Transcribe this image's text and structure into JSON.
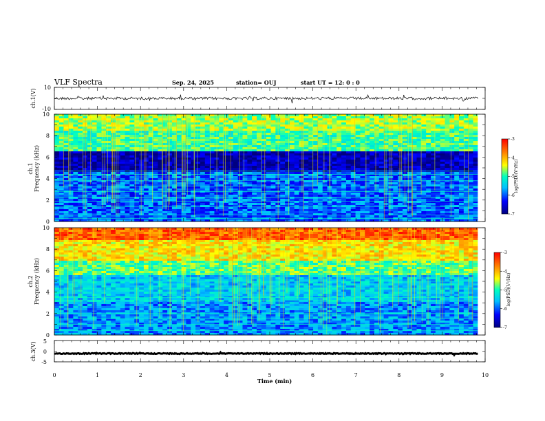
{
  "header": {
    "title": "VLF Spectra",
    "date": "Sep. 24, 2025",
    "station": "station= OUJ",
    "start": "start  UT  =   12: 0  : 0"
  },
  "colors": {
    "colormap": [
      "#00007f",
      "#0000ff",
      "#00c0ff",
      "#00ffc0",
      "#ffff00",
      "#ff8000",
      "#ff0000"
    ]
  },
  "chart_data": [
    {
      "type": "line",
      "id": "ch1_waveform",
      "ylabel": "ch.1(V)",
      "ylim": [
        -10,
        10
      ],
      "yticks": [
        "10",
        "-10"
      ],
      "xlim": [
        0,
        10
      ],
      "series": [
        {
          "x": [
            0,
            9.83
          ],
          "y": [
            0,
            0
          ],
          "note_level": 0
        }
      ]
    },
    {
      "type": "heatmap",
      "id": "ch1_spectrogram",
      "ylabel": [
        "ch.1",
        "Frequency (kHz)"
      ],
      "ylim": [
        0,
        10
      ],
      "yticks": [
        "0",
        "2",
        "4",
        "6",
        "8",
        "10"
      ],
      "xlim": [
        0,
        10
      ],
      "data_xmax": 9.83,
      "colorbar": {
        "label": "log(PSD)(V²/Hz)",
        "range": [
          -7,
          -3
        ],
        "ticks": [
          "-3",
          "-4",
          "-5",
          "-6",
          "-7"
        ]
      },
      "bands": [
        {
          "from": 0,
          "to": 4.7,
          "level": -6.0
        },
        {
          "from": 4.7,
          "to": 6.5,
          "level": -6.7
        },
        {
          "from": 6.5,
          "to": 8.5,
          "level": -4.9
        },
        {
          "from": 8.5,
          "to": 10,
          "level": -4.6
        }
      ],
      "lines_khz": [
        0.3,
        0.6,
        1.4,
        1.9,
        2.2,
        2.8,
        3.3,
        3.8,
        4.4,
        4.7
      ]
    },
    {
      "type": "heatmap",
      "id": "ch2_spectrogram",
      "ylabel": [
        "ch.2",
        "Frequency (kHz)"
      ],
      "ylim": [
        0,
        10
      ],
      "yticks": [
        "0",
        "2",
        "4",
        "6",
        "8",
        "10"
      ],
      "xlim": [
        0,
        10
      ],
      "data_xmax": 9.83,
      "colorbar": {
        "label": "log(PSD)(V²/Hz)",
        "range": [
          -7,
          -3
        ],
        "ticks": [
          "-3",
          "-4",
          "-5",
          "-6",
          "-7"
        ]
      },
      "bands": [
        {
          "from": 0,
          "to": 3.0,
          "level": -5.8
        },
        {
          "from": 3.0,
          "to": 5.5,
          "level": -5.5
        },
        {
          "from": 5.5,
          "to": 7.0,
          "level": -4.8
        },
        {
          "from": 7.0,
          "to": 8.8,
          "level": -4.2
        },
        {
          "from": 8.8,
          "to": 10,
          "level": -3.5
        }
      ],
      "lines_khz": [
        0.4,
        1.0,
        1.5,
        2.0,
        3.2,
        3.5,
        4.3,
        5.0
      ]
    },
    {
      "type": "line",
      "id": "ch3_waveform",
      "ylabel": "ch.3(V)",
      "ylim": [
        -5,
        5
      ],
      "yticks": [
        "5",
        "0",
        "-5"
      ],
      "xlim": [
        0,
        10
      ],
      "xlabel": "Time (min)",
      "xticks": [
        "0",
        "1",
        "2",
        "3",
        "4",
        "5",
        "6",
        "7",
        "8",
        "9",
        "10"
      ],
      "series": [
        {
          "x": [
            0,
            9.83
          ],
          "y": [
            -1.1,
            -1.1
          ],
          "note_level": -1.1
        }
      ]
    }
  ]
}
